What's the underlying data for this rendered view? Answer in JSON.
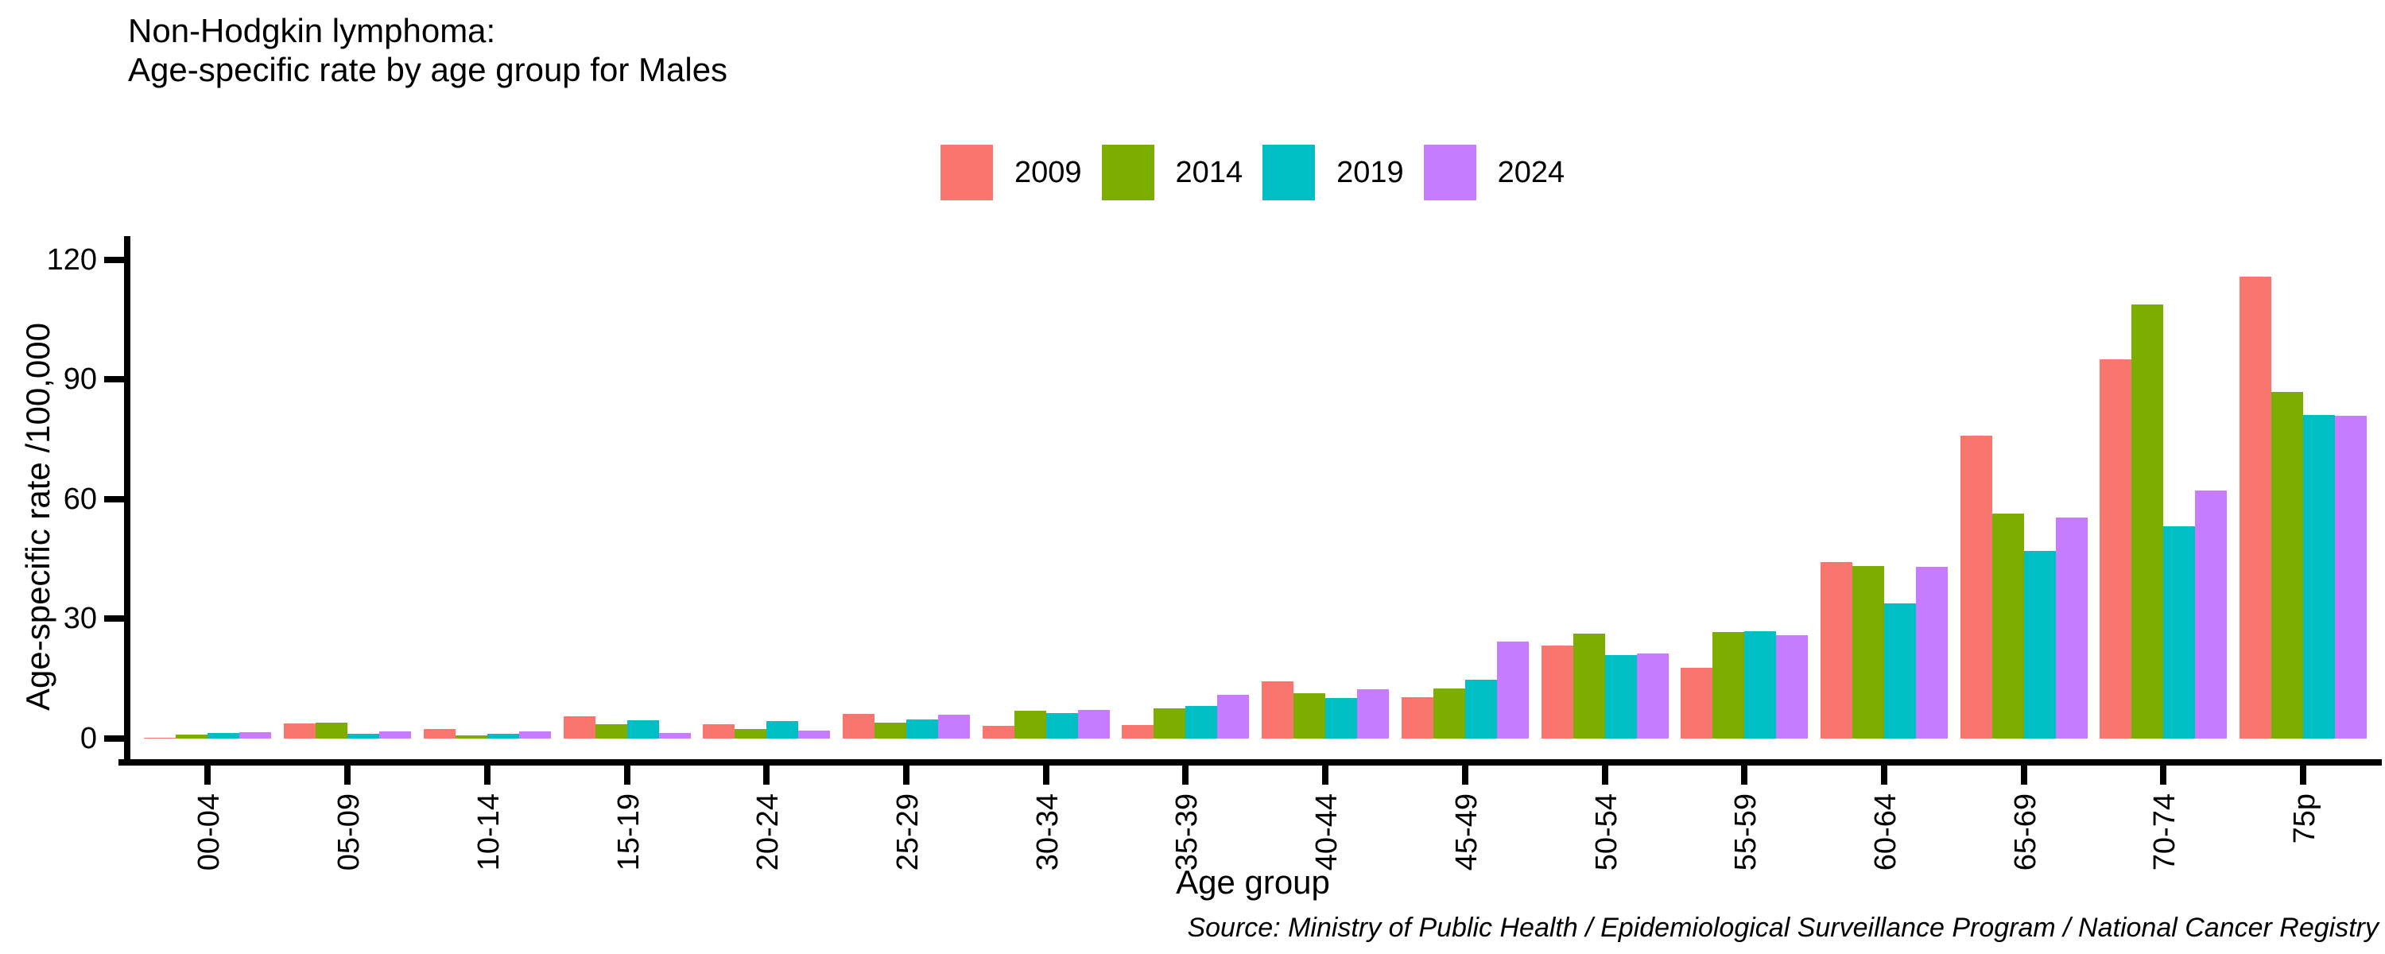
{
  "title": {
    "line1": "Non-Hodgkin lymphoma:",
    "line2": "Age-specific rate by age group for Males"
  },
  "source": "Source: Ministry of Public Health / Epidemiological Surveillance Program / National Cancer Registry",
  "chart_data": {
    "type": "bar",
    "title": "Non-Hodgkin lymphoma: Age-specific rate by age group for Males",
    "xlabel": "Age group",
    "ylabel": "Age-specific rate /100,000",
    "ylim": [
      0,
      120
    ],
    "yticks": [
      0,
      30,
      60,
      90,
      120
    ],
    "grid": false,
    "legend_position": "top-center",
    "categories": [
      "00-04",
      "05-09",
      "10-14",
      "15-19",
      "20-24",
      "25-29",
      "30-34",
      "35-39",
      "40-44",
      "45-49",
      "50-54",
      "55-59",
      "60-64",
      "65-69",
      "70-74",
      "75p"
    ],
    "series": [
      {
        "name": "2009",
        "color": "#F8766D",
        "values": [
          0.1,
          3.8,
          2.4,
          5.5,
          3.6,
          6.1,
          3.1,
          3.4,
          14.4,
          10.3,
          23.3,
          17.8,
          44.3,
          76.0,
          95.0,
          115.8
        ]
      },
      {
        "name": "2014",
        "color": "#7CAE00",
        "values": [
          0.9,
          3.9,
          0.7,
          3.5,
          2.3,
          4.0,
          7.0,
          7.5,
          11.3,
          12.6,
          26.4,
          26.8,
          43.3,
          56.5,
          108.8,
          87.0
        ]
      },
      {
        "name": "2019",
        "color": "#00BFC4",
        "values": [
          1.3,
          1.2,
          1.2,
          4.5,
          4.3,
          4.8,
          6.3,
          8.2,
          10.2,
          14.7,
          21.0,
          27.0,
          33.9,
          47.0,
          53.2,
          81.2
        ]
      },
      {
        "name": "2024",
        "color": "#C77CFF",
        "values": [
          1.5,
          1.8,
          1.8,
          1.4,
          1.9,
          5.9,
          7.2,
          11.0,
          12.3,
          24.3,
          21.3,
          26.0,
          43.1,
          55.5,
          62.2,
          81.0
        ]
      }
    ]
  }
}
